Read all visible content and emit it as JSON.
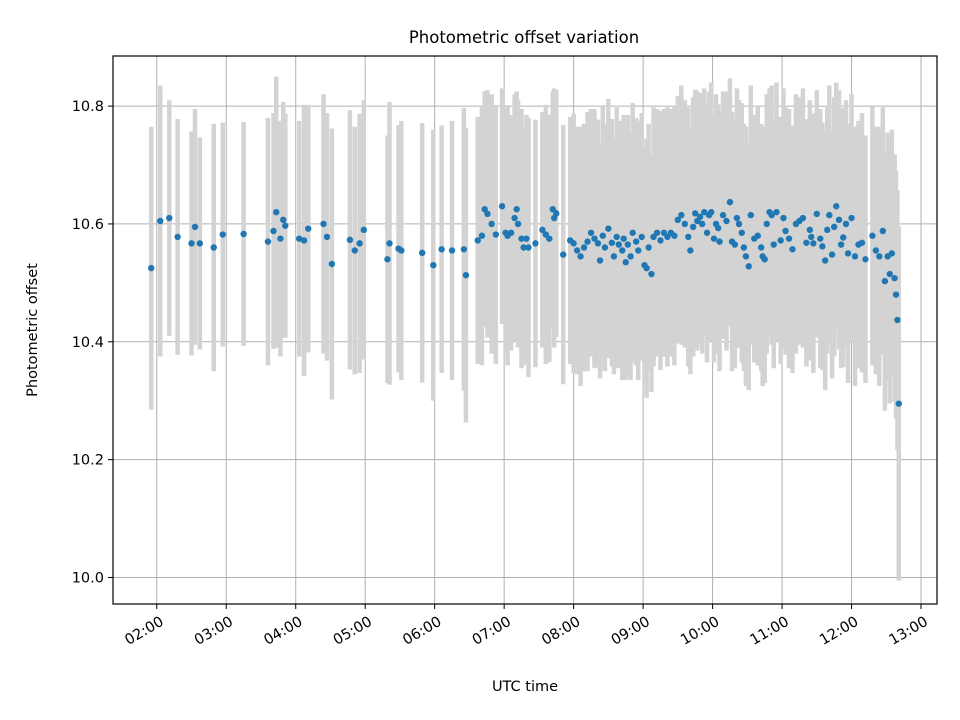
{
  "chart_data": {
    "type": "scatter",
    "title": "Photometric offset variation",
    "xlabel": "UTC time",
    "ylabel": "Photometric offset",
    "grid": true,
    "xlim_hours": [
      1.37,
      13.23
    ],
    "ylim": [
      9.955,
      10.885
    ],
    "x_tick_labels": [
      "02:00",
      "03:00",
      "04:00",
      "05:00",
      "06:00",
      "07:00",
      "08:00",
      "09:00",
      "10:00",
      "11:00",
      "12:00",
      "13:00"
    ],
    "x_tick_hours": [
      2,
      3,
      4,
      5,
      6,
      7,
      8,
      9,
      10,
      11,
      12,
      13
    ],
    "y_ticks": [
      10.0,
      10.2,
      10.4,
      10.6,
      10.8
    ],
    "y_tick_labels": [
      "10.0",
      "10.2",
      "10.4",
      "10.6",
      "10.8"
    ],
    "colors": {
      "marker": "#1f77b4",
      "errorbar": "#d3d3d3",
      "grid": "#b0b0b0"
    },
    "series": [
      {
        "name": "offset",
        "points": [
          [
            1.92,
            10.525,
            0.24
          ],
          [
            2.05,
            10.605,
            0.23
          ],
          [
            2.18,
            10.61,
            0.2
          ],
          [
            2.3,
            10.578,
            0.2
          ],
          [
            2.5,
            10.567,
            0.19
          ],
          [
            2.55,
            10.595,
            0.2
          ],
          [
            2.62,
            10.567,
            0.18
          ],
          [
            2.82,
            10.56,
            0.21
          ],
          [
            2.95,
            10.582,
            0.19
          ],
          [
            3.25,
            10.583,
            0.19
          ],
          [
            3.6,
            10.57,
            0.21
          ],
          [
            3.68,
            10.588,
            0.2
          ],
          [
            3.72,
            10.62,
            0.23
          ],
          [
            3.78,
            10.575,
            0.2
          ],
          [
            3.82,
            10.607,
            0.2
          ],
          [
            3.85,
            10.597,
            0.19
          ],
          [
            4.05,
            10.575,
            0.2
          ],
          [
            4.12,
            10.572,
            0.23
          ],
          [
            4.18,
            10.592,
            0.21
          ],
          [
            4.4,
            10.6,
            0.22
          ],
          [
            4.45,
            10.578,
            0.21
          ],
          [
            4.52,
            10.532,
            0.23
          ],
          [
            4.78,
            10.573,
            0.22
          ],
          [
            4.85,
            10.555,
            0.21
          ],
          [
            4.92,
            10.567,
            0.22
          ],
          [
            4.98,
            10.59,
            0.22
          ],
          [
            5.32,
            10.54,
            0.21
          ],
          [
            5.35,
            10.567,
            0.24
          ],
          [
            5.48,
            10.558,
            0.21
          ],
          [
            5.52,
            10.555,
            0.22
          ],
          [
            5.82,
            10.551,
            0.22
          ],
          [
            5.98,
            10.53,
            0.23
          ],
          [
            6.1,
            10.557,
            0.21
          ],
          [
            6.25,
            10.555,
            0.22
          ],
          [
            6.42,
            10.557,
            0.24
          ],
          [
            6.45,
            10.513,
            0.25
          ],
          [
            6.62,
            10.572,
            0.21
          ],
          [
            6.68,
            10.58,
            0.22
          ],
          [
            6.72,
            10.625,
            0.2
          ],
          [
            6.76,
            10.617,
            0.21
          ],
          [
            6.82,
            10.6,
            0.22
          ],
          [
            6.88,
            10.582,
            0.22
          ],
          [
            6.97,
            10.63,
            0.2
          ],
          [
            7.02,
            10.585,
            0.21
          ],
          [
            7.05,
            10.58,
            0.22
          ],
          [
            7.1,
            10.585,
            0.2
          ],
          [
            7.15,
            10.61,
            0.21
          ],
          [
            7.18,
            10.625,
            0.2
          ],
          [
            7.2,
            10.6,
            0.21
          ],
          [
            7.25,
            10.575,
            0.22
          ],
          [
            7.28,
            10.56,
            0.2
          ],
          [
            7.32,
            10.575,
            0.21
          ],
          [
            7.35,
            10.56,
            0.22
          ],
          [
            7.45,
            10.567,
            0.21
          ],
          [
            7.55,
            10.59,
            0.2
          ],
          [
            7.6,
            10.582,
            0.22
          ],
          [
            7.65,
            10.575,
            0.21
          ],
          [
            7.7,
            10.625,
            0.2
          ],
          [
            7.72,
            10.61,
            0.22
          ],
          [
            7.75,
            10.618,
            0.21
          ],
          [
            7.85,
            10.548,
            0.22
          ],
          [
            7.95,
            10.572,
            0.21
          ],
          [
            8.0,
            10.567,
            0.22
          ],
          [
            8.05,
            10.555,
            0.21
          ],
          [
            8.1,
            10.545,
            0.22
          ],
          [
            8.15,
            10.56,
            0.21
          ],
          [
            8.2,
            10.57,
            0.22
          ],
          [
            8.25,
            10.585,
            0.21
          ],
          [
            8.3,
            10.575,
            0.22
          ],
          [
            8.35,
            10.567,
            0.21
          ],
          [
            8.38,
            10.538,
            0.2
          ],
          [
            8.42,
            10.58,
            0.22
          ],
          [
            8.45,
            10.56,
            0.21
          ],
          [
            8.5,
            10.592,
            0.22
          ],
          [
            8.55,
            10.568,
            0.21
          ],
          [
            8.58,
            10.545,
            0.2
          ],
          [
            8.62,
            10.578,
            0.22
          ],
          [
            8.65,
            10.565,
            0.21
          ],
          [
            8.7,
            10.555,
            0.22
          ],
          [
            8.72,
            10.575,
            0.21
          ],
          [
            8.75,
            10.535,
            0.2
          ],
          [
            8.78,
            10.565,
            0.22
          ],
          [
            8.82,
            10.545,
            0.21
          ],
          [
            8.85,
            10.585,
            0.22
          ],
          [
            8.9,
            10.57,
            0.21
          ],
          [
            8.93,
            10.555,
            0.22
          ],
          [
            8.98,
            10.578,
            0.21
          ],
          [
            9.02,
            10.53,
            0.2
          ],
          [
            9.05,
            10.525,
            0.22
          ],
          [
            9.08,
            10.56,
            0.21
          ],
          [
            9.12,
            10.515,
            0.2
          ],
          [
            9.15,
            10.578,
            0.22
          ],
          [
            9.2,
            10.585,
            0.21
          ],
          [
            9.25,
            10.572,
            0.22
          ],
          [
            9.3,
            10.585,
            0.21
          ],
          [
            9.35,
            10.578,
            0.22
          ],
          [
            9.4,
            10.585,
            0.21
          ],
          [
            9.45,
            10.58,
            0.22
          ],
          [
            9.5,
            10.607,
            0.21
          ],
          [
            9.55,
            10.615,
            0.22
          ],
          [
            9.6,
            10.6,
            0.21
          ],
          [
            9.65,
            10.578,
            0.22
          ],
          [
            9.68,
            10.555,
            0.21
          ],
          [
            9.72,
            10.595,
            0.22
          ],
          [
            9.75,
            10.618,
            0.21
          ],
          [
            9.78,
            10.605,
            0.22
          ],
          [
            9.82,
            10.612,
            0.21
          ],
          [
            9.85,
            10.6,
            0.22
          ],
          [
            9.88,
            10.62,
            0.21
          ],
          [
            9.92,
            10.585,
            0.22
          ],
          [
            9.95,
            10.615,
            0.21
          ],
          [
            9.98,
            10.62,
            0.22
          ],
          [
            10.02,
            10.575,
            0.21
          ],
          [
            10.05,
            10.6,
            0.22
          ],
          [
            10.08,
            10.593,
            0.21
          ],
          [
            10.1,
            10.57,
            0.22
          ],
          [
            10.15,
            10.615,
            0.21
          ],
          [
            10.2,
            10.605,
            0.22
          ],
          [
            10.25,
            10.637,
            0.21
          ],
          [
            10.28,
            10.57,
            0.22
          ],
          [
            10.32,
            10.565,
            0.21
          ],
          [
            10.35,
            10.61,
            0.22
          ],
          [
            10.38,
            10.6,
            0.21
          ],
          [
            10.42,
            10.585,
            0.22
          ],
          [
            10.45,
            10.56,
            0.21
          ],
          [
            10.48,
            10.545,
            0.22
          ],
          [
            10.52,
            10.528,
            0.21
          ],
          [
            10.55,
            10.615,
            0.22
          ],
          [
            10.6,
            10.575,
            0.21
          ],
          [
            10.65,
            10.58,
            0.22
          ],
          [
            10.7,
            10.56,
            0.21
          ],
          [
            10.72,
            10.545,
            0.22
          ],
          [
            10.75,
            10.54,
            0.21
          ],
          [
            10.78,
            10.6,
            0.22
          ],
          [
            10.82,
            10.62,
            0.21
          ],
          [
            10.85,
            10.615,
            0.22
          ],
          [
            10.88,
            10.565,
            0.21
          ],
          [
            10.92,
            10.62,
            0.22
          ],
          [
            10.98,
            10.572,
            0.21
          ],
          [
            11.02,
            10.61,
            0.22
          ],
          [
            11.05,
            10.588,
            0.21
          ],
          [
            11.1,
            10.575,
            0.22
          ],
          [
            11.15,
            10.557,
            0.21
          ],
          [
            11.2,
            10.6,
            0.22
          ],
          [
            11.25,
            10.605,
            0.21
          ],
          [
            11.3,
            10.61,
            0.22
          ],
          [
            11.35,
            10.568,
            0.21
          ],
          [
            11.4,
            10.59,
            0.22
          ],
          [
            11.42,
            10.578,
            0.21
          ],
          [
            11.45,
            10.567,
            0.22
          ],
          [
            11.5,
            10.617,
            0.21
          ],
          [
            11.55,
            10.575,
            0.22
          ],
          [
            11.58,
            10.562,
            0.21
          ],
          [
            11.62,
            10.538,
            0.22
          ],
          [
            11.65,
            10.59,
            0.21
          ],
          [
            11.68,
            10.615,
            0.22
          ],
          [
            11.72,
            10.548,
            0.21
          ],
          [
            11.75,
            10.595,
            0.22
          ],
          [
            11.78,
            10.63,
            0.21
          ],
          [
            11.82,
            10.607,
            0.22
          ],
          [
            11.85,
            10.565,
            0.21
          ],
          [
            11.88,
            10.577,
            0.22
          ],
          [
            11.92,
            10.6,
            0.21
          ],
          [
            11.95,
            10.55,
            0.22
          ],
          [
            12.0,
            10.61,
            0.21
          ],
          [
            12.05,
            10.545,
            0.22
          ],
          [
            12.1,
            10.565,
            0.21
          ],
          [
            12.15,
            10.568,
            0.22
          ],
          [
            12.2,
            10.54,
            0.21
          ],
          [
            12.3,
            10.58,
            0.22
          ],
          [
            12.35,
            10.555,
            0.21
          ],
          [
            12.4,
            10.545,
            0.22
          ],
          [
            12.45,
            10.588,
            0.21
          ],
          [
            12.48,
            10.503,
            0.22
          ],
          [
            12.52,
            10.545,
            0.21
          ],
          [
            12.55,
            10.515,
            0.22
          ],
          [
            12.58,
            10.55,
            0.21
          ],
          [
            12.62,
            10.508,
            0.21
          ],
          [
            12.64,
            10.48,
            0.21
          ],
          [
            12.66,
            10.437,
            0.22
          ],
          [
            12.68,
            10.295,
            0.3
          ]
        ]
      }
    ]
  }
}
